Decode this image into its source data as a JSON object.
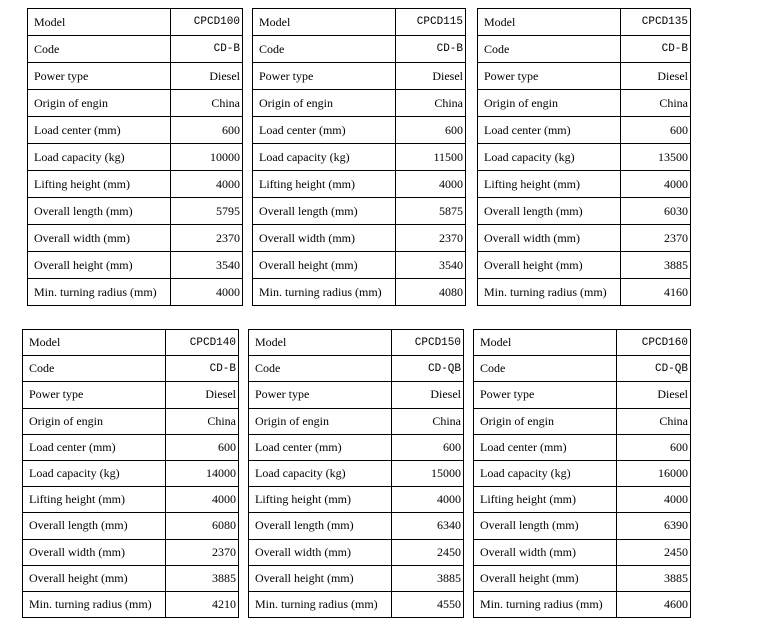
{
  "labels": [
    "Model",
    "Code",
    "Power type",
    "Origin of engin",
    "Load center (mm)",
    "Load capacity (kg)",
    "Lifting height (mm)",
    "Overall length (mm)",
    "Overall width (mm)",
    "Overall height (mm)",
    "Min. turning radius (mm)"
  ],
  "tables": [
    {
      "values": [
        "CPCD100",
        "CD-B",
        "Diesel",
        "China",
        "600",
        "10000",
        "4000",
        "5795",
        "2370",
        "3540",
        "4000"
      ]
    },
    {
      "values": [
        "CPCD115",
        "CD-B",
        "Diesel",
        "China",
        "600",
        "11500",
        "4000",
        "5875",
        "2370",
        "3540",
        "4080"
      ]
    },
    {
      "values": [
        "CPCD135",
        "CD-B",
        "Diesel",
        "China",
        "600",
        "13500",
        "4000",
        "6030",
        "2370",
        "3885",
        "4160"
      ]
    },
    {
      "values": [
        "CPCD140",
        "CD-B",
        "Diesel",
        "China",
        "600",
        "14000",
        "4000",
        "6080",
        "2370",
        "3885",
        "4210"
      ]
    },
    {
      "values": [
        "CPCD150",
        "CD-QB",
        "Diesel",
        "China",
        "600",
        "15000",
        "4000",
        "6340",
        "2450",
        "3885",
        "4550"
      ]
    },
    {
      "values": [
        "CPCD160",
        "CD-QB",
        "Diesel",
        "China",
        "600",
        "16000",
        "4000",
        "6390",
        "2450",
        "3885",
        "4600"
      ]
    }
  ]
}
